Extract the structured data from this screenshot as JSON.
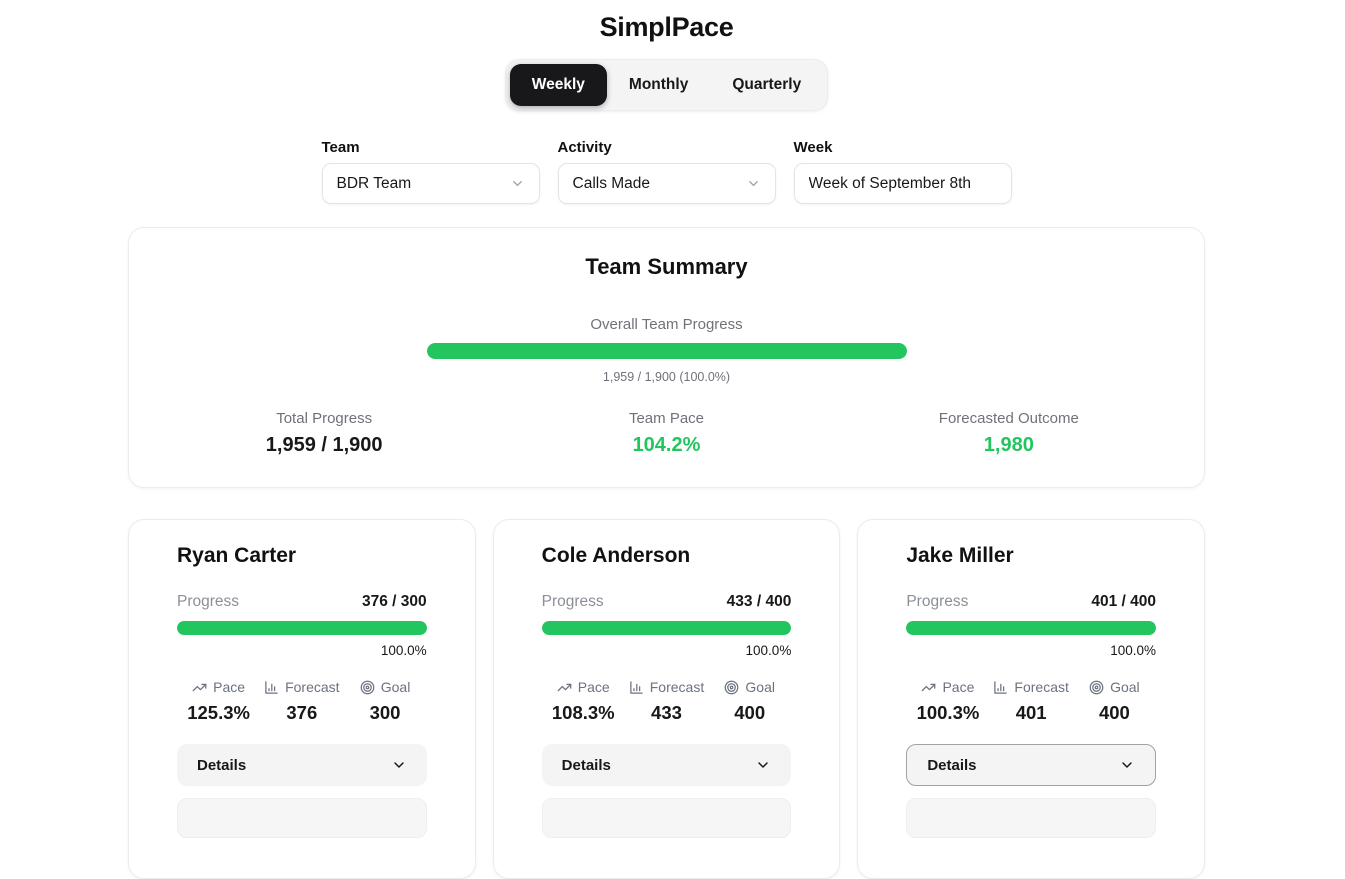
{
  "app": {
    "title": "SimplPace"
  },
  "tabs": [
    {
      "label": "Weekly",
      "active": true
    },
    {
      "label": "Monthly",
      "active": false
    },
    {
      "label": "Quarterly",
      "active": false
    }
  ],
  "filters": {
    "team": {
      "label": "Team",
      "value": "BDR Team"
    },
    "activity": {
      "label": "Activity",
      "value": "Calls Made"
    },
    "week": {
      "label": "Week",
      "value": "Week of September 8th"
    }
  },
  "summary": {
    "title": "Team Summary",
    "overall_label": "Overall Team Progress",
    "progress_percent": 100,
    "progress_caption": "1,959 / 1,900 (100.0%)",
    "stats": [
      {
        "label": "Total Progress",
        "value": "1,959 / 1,900"
      },
      {
        "label": "Team Pace",
        "value": "104.2%"
      },
      {
        "label": "Forecasted Outcome",
        "value": "1,980"
      }
    ]
  },
  "members": [
    {
      "name": "Ryan Carter",
      "progress_label": "Progress",
      "progress_value": "376 / 300",
      "bar_percent": 100,
      "progress_percent_text": "100.0%",
      "pace": {
        "label": "Pace",
        "value": "125.3%"
      },
      "forecast": {
        "label": "Forecast",
        "value": "376"
      },
      "goal": {
        "label": "Goal",
        "value": "300"
      },
      "details_label": "Details"
    },
    {
      "name": "Cole Anderson",
      "progress_label": "Progress",
      "progress_value": "433 / 400",
      "bar_percent": 100,
      "progress_percent_text": "100.0%",
      "pace": {
        "label": "Pace",
        "value": "108.3%"
      },
      "forecast": {
        "label": "Forecast",
        "value": "433"
      },
      "goal": {
        "label": "Goal",
        "value": "400"
      },
      "details_label": "Details"
    },
    {
      "name": "Jake Miller",
      "progress_label": "Progress",
      "progress_value": "401 / 400",
      "bar_percent": 100,
      "progress_percent_text": "100.0%",
      "pace": {
        "label": "Pace",
        "value": "100.3%"
      },
      "forecast": {
        "label": "Forecast",
        "value": "401"
      },
      "goal": {
        "label": "Goal",
        "value": "400"
      },
      "details_label": "Details"
    }
  ],
  "icons": {
    "pace": "trending-up",
    "forecast": "bar-chart",
    "goal": "target",
    "details": "chevron-down",
    "select": "chevron-down"
  },
  "colors": {
    "green": "#22c55e",
    "dark": "#18181b",
    "muted_text": "#71717a",
    "card_border": "#ececee",
    "control_bg": "#f4f4f5"
  }
}
